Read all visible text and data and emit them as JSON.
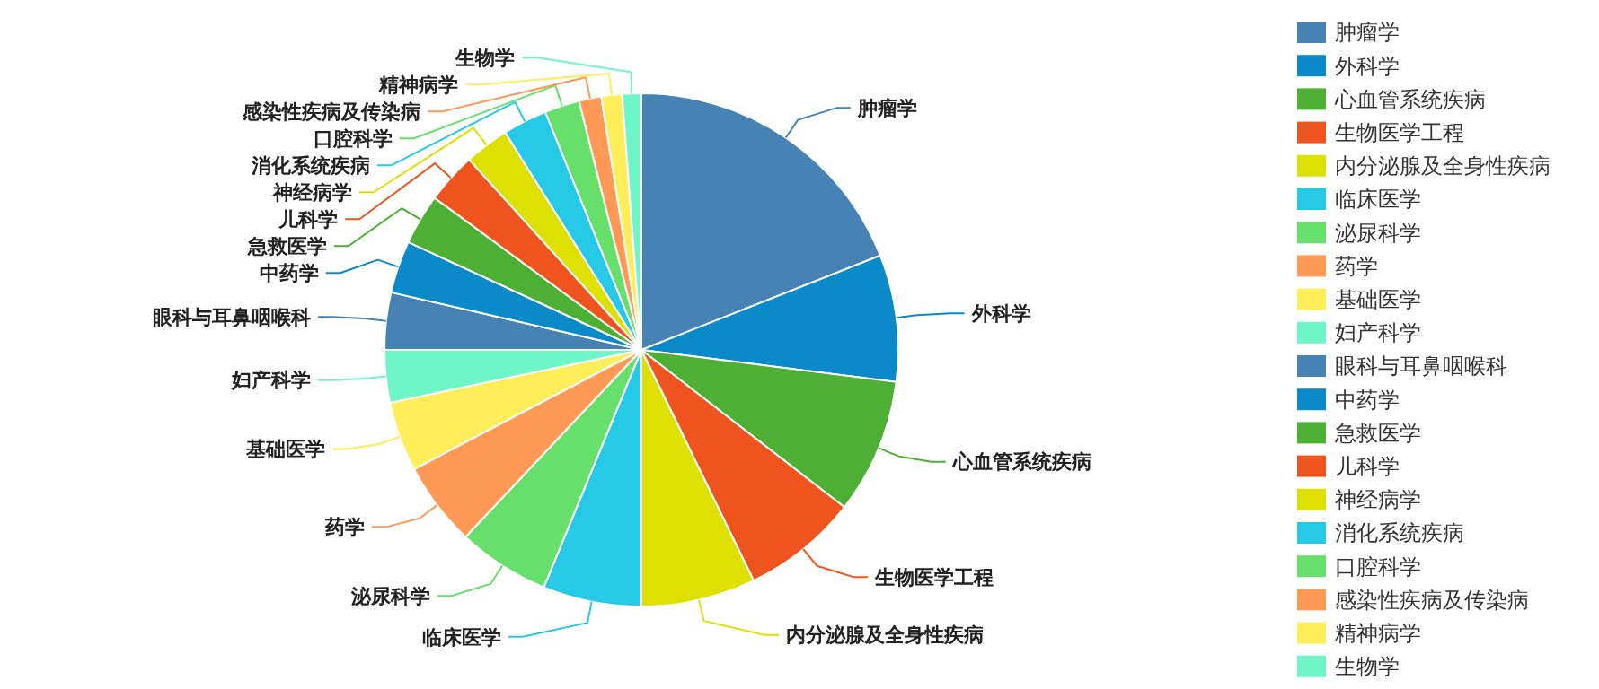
{
  "chart_data": {
    "type": "pie",
    "categories": [
      "肿瘤学",
      "外科学",
      "心血管系统疾病",
      "生物医学工程",
      "内分泌腺及全身性疾病",
      "临床医学",
      "泌尿科学",
      "药学",
      "基础医学",
      "妇产科学",
      "眼科与耳鼻咽喉科",
      "中药学",
      "急救医学",
      "儿科学",
      "神经病学",
      "消化系统疾病",
      "口腔科学",
      "感染性疾病及传染病",
      "精神病学",
      "生物学"
    ],
    "values": [
      19,
      8,
      8.5,
      7.3,
      7.2,
      6.2,
      5.8,
      5.3,
      4.4,
      3.3,
      3.6,
      3.3,
      3.2,
      3.2,
      2.8,
      2.8,
      2.2,
      1.4,
      1.3,
      1.2
    ],
    "colors": [
      "#4682b4",
      "#0a8ac8",
      "#4daf33",
      "#f0541e",
      "#dde000",
      "#26c9e6",
      "#66e06a",
      "#ff9955",
      "#ffee5a",
      "#6ef5c8",
      "#4682b4",
      "#0a8ac8",
      "#4daf33",
      "#f0541e",
      "#dde000",
      "#26c9e6",
      "#66e06a",
      "#ff9955",
      "#ffee5a",
      "#6ef5c8"
    ],
    "legend": "right"
  }
}
